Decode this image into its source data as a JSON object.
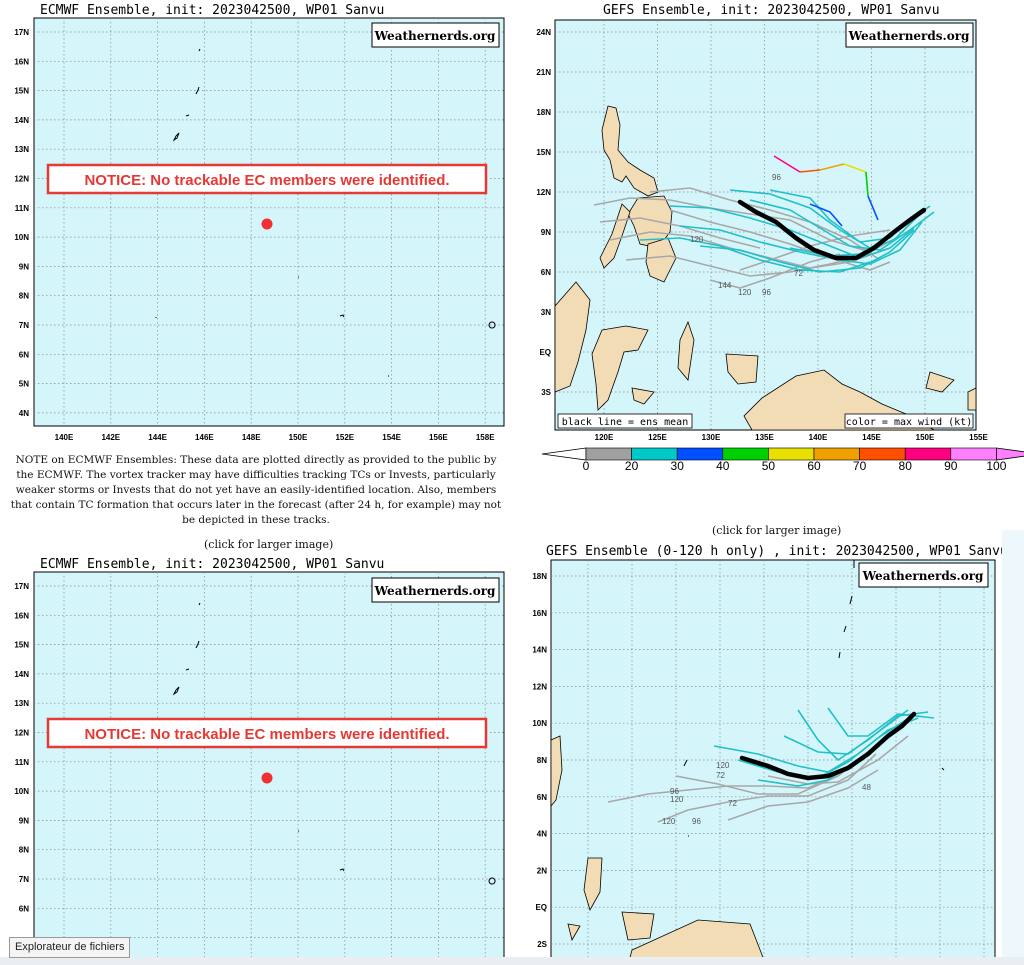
{
  "brand": "Weathernerds.org",
  "ecmwf_top": {
    "title": "ECMWF Ensemble, init: 2023042500, WP01 Sanvu",
    "notice": "NOTICE: No trackable EC members were identified.",
    "lat_labels": [
      "17N",
      "16N",
      "15N",
      "14N",
      "13N",
      "12N",
      "11N",
      "10N",
      "9N",
      "8N",
      "7N",
      "6N",
      "5N",
      "4N"
    ],
    "lon_labels": [
      "140E",
      "142E",
      "144E",
      "146E",
      "148E",
      "150E",
      "152E",
      "154E",
      "156E",
      "158E"
    ]
  },
  "gefs_top": {
    "title": "GEFS Ensemble, init: 2023042500, WP01 Sanvu",
    "lat_labels": [
      "24N",
      "21N",
      "18N",
      "15N",
      "12N",
      "9N",
      "6N",
      "3N",
      "EQ",
      "3S"
    ],
    "lon_labels": [
      "120E",
      "125E",
      "130E",
      "135E",
      "140E",
      "145E",
      "150E",
      "155E"
    ],
    "legend_left": "black line = ens mean",
    "legend_right": "color = max wind (kt)",
    "scale_labels": [
      "0",
      "20",
      "30",
      "40",
      "50",
      "60",
      "70",
      "80",
      "90",
      "100"
    ],
    "scale_colors": [
      "#a0a0a0",
      "#00c8c8",
      "#0050ff",
      "#00d000",
      "#e8e000",
      "#f0a000",
      "#ff5000",
      "#ff0080",
      "#ff80ff"
    ],
    "track_labels": [
      "144",
      "120",
      "96",
      "72",
      "120",
      "96"
    ]
  },
  "note": "NOTE on ECMWF Ensembles: These data are plotted directly as provided to the public by the ECMWF. The vortex tracker may have difficulties tracking TCs or Invests, particularly weaker storms or Invests that do not yet have an easily-identified location. Also, members that contain TC formation that occurs later in the forecast (after 24 h, for example) may not be depicted in these tracks.",
  "click_left": "(click for larger image)",
  "click_right": "(click for larger image)",
  "ecmwf_bottom": {
    "title": "ECMWF Ensemble, init: 2023042500, WP01 Sanvu",
    "notice": "NOTICE: No trackable EC members were identified.",
    "lat_labels": [
      "17N",
      "16N",
      "15N",
      "14N",
      "13N",
      "12N",
      "11N",
      "10N",
      "9N",
      "8N",
      "7N",
      "6N"
    ]
  },
  "gefs_bottom": {
    "title": "GEFS Ensemble (0-120 h only) , init: 2023042500, WP01 Sanvu",
    "lat_labels": [
      "18N",
      "16N",
      "14N",
      "12N",
      "10N",
      "8N",
      "6N",
      "4N",
      "2N",
      "EQ",
      "2S"
    ],
    "track_labels": [
      "120",
      "72",
      "120",
      "96",
      "72",
      "120",
      "96",
      "48"
    ]
  },
  "tooltip": "Explorateur de fichiers"
}
